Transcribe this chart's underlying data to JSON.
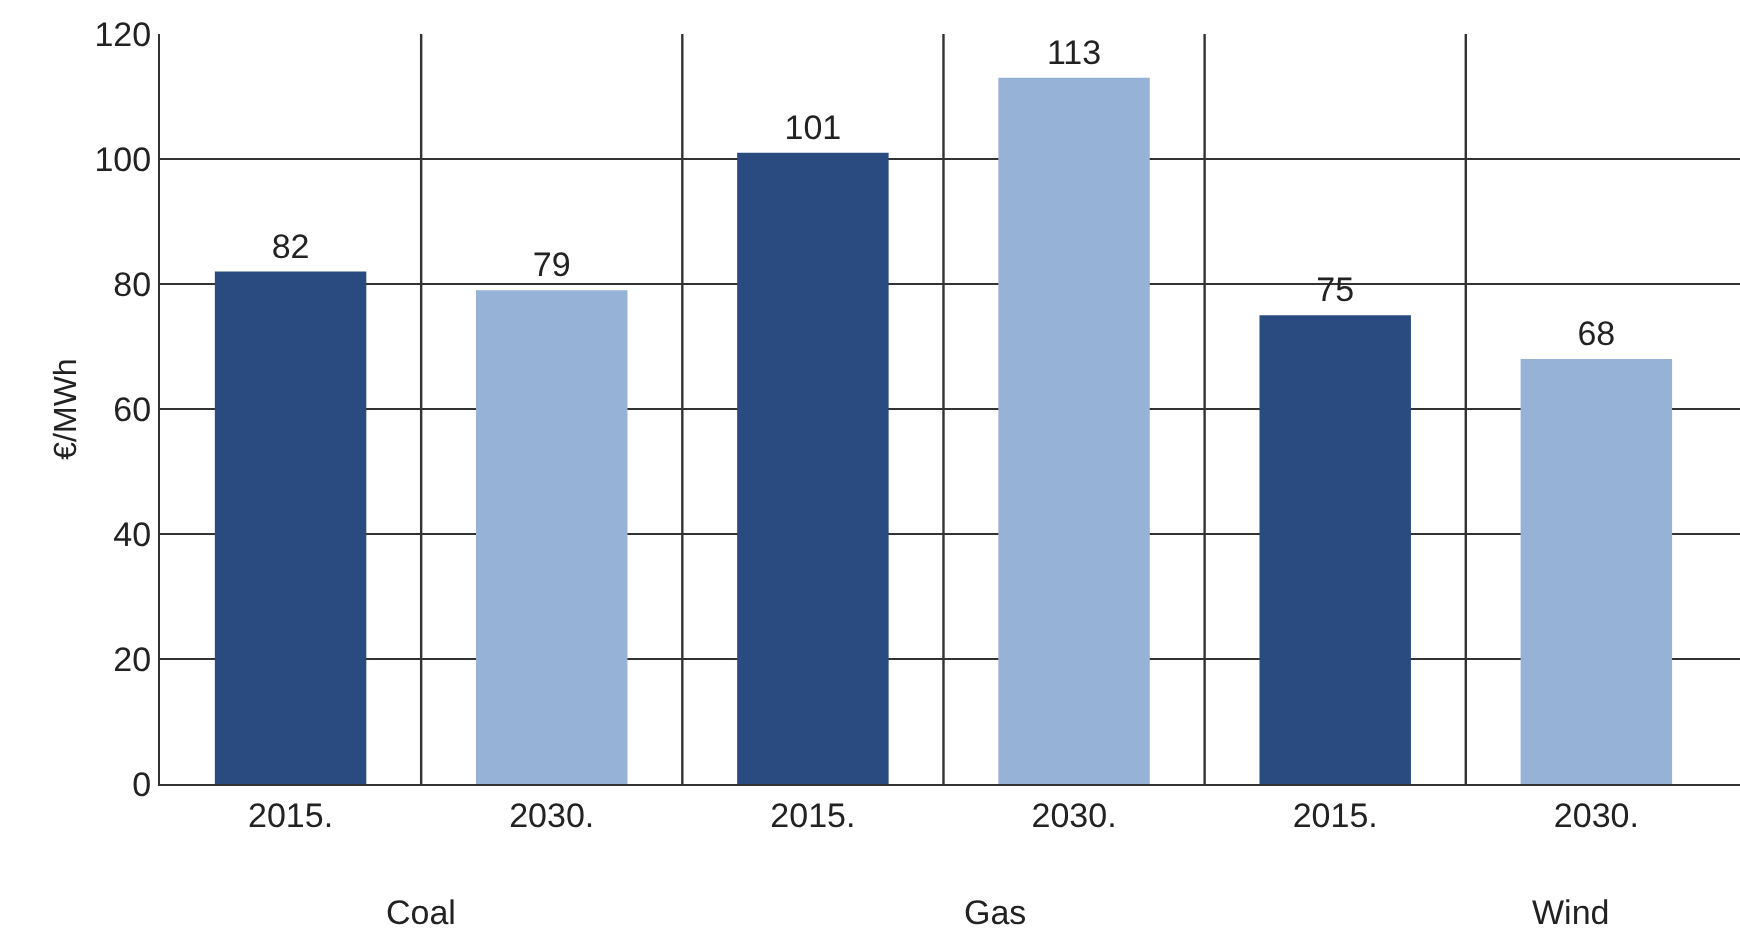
{
  "chart_data": {
    "type": "bar",
    "ylabel": "€/MWh",
    "categories": [
      "2015.",
      "2030.",
      "2015.",
      "2030.",
      "2015.",
      "2030."
    ],
    "values": [
      82,
      79,
      101,
      113,
      75,
      68
    ],
    "colors": [
      "#2a4b80",
      "#96b3d7",
      "#2a4b80",
      "#96b3d7",
      "#2a4b80",
      "#96b3d7"
    ],
    "ylim": [
      0,
      120
    ],
    "yticks": [
      0,
      20,
      40,
      60,
      80,
      100,
      120
    ],
    "grid": true,
    "data_labels": true,
    "annotations": [
      "Coal",
      "Gas",
      "Wind"
    ]
  }
}
